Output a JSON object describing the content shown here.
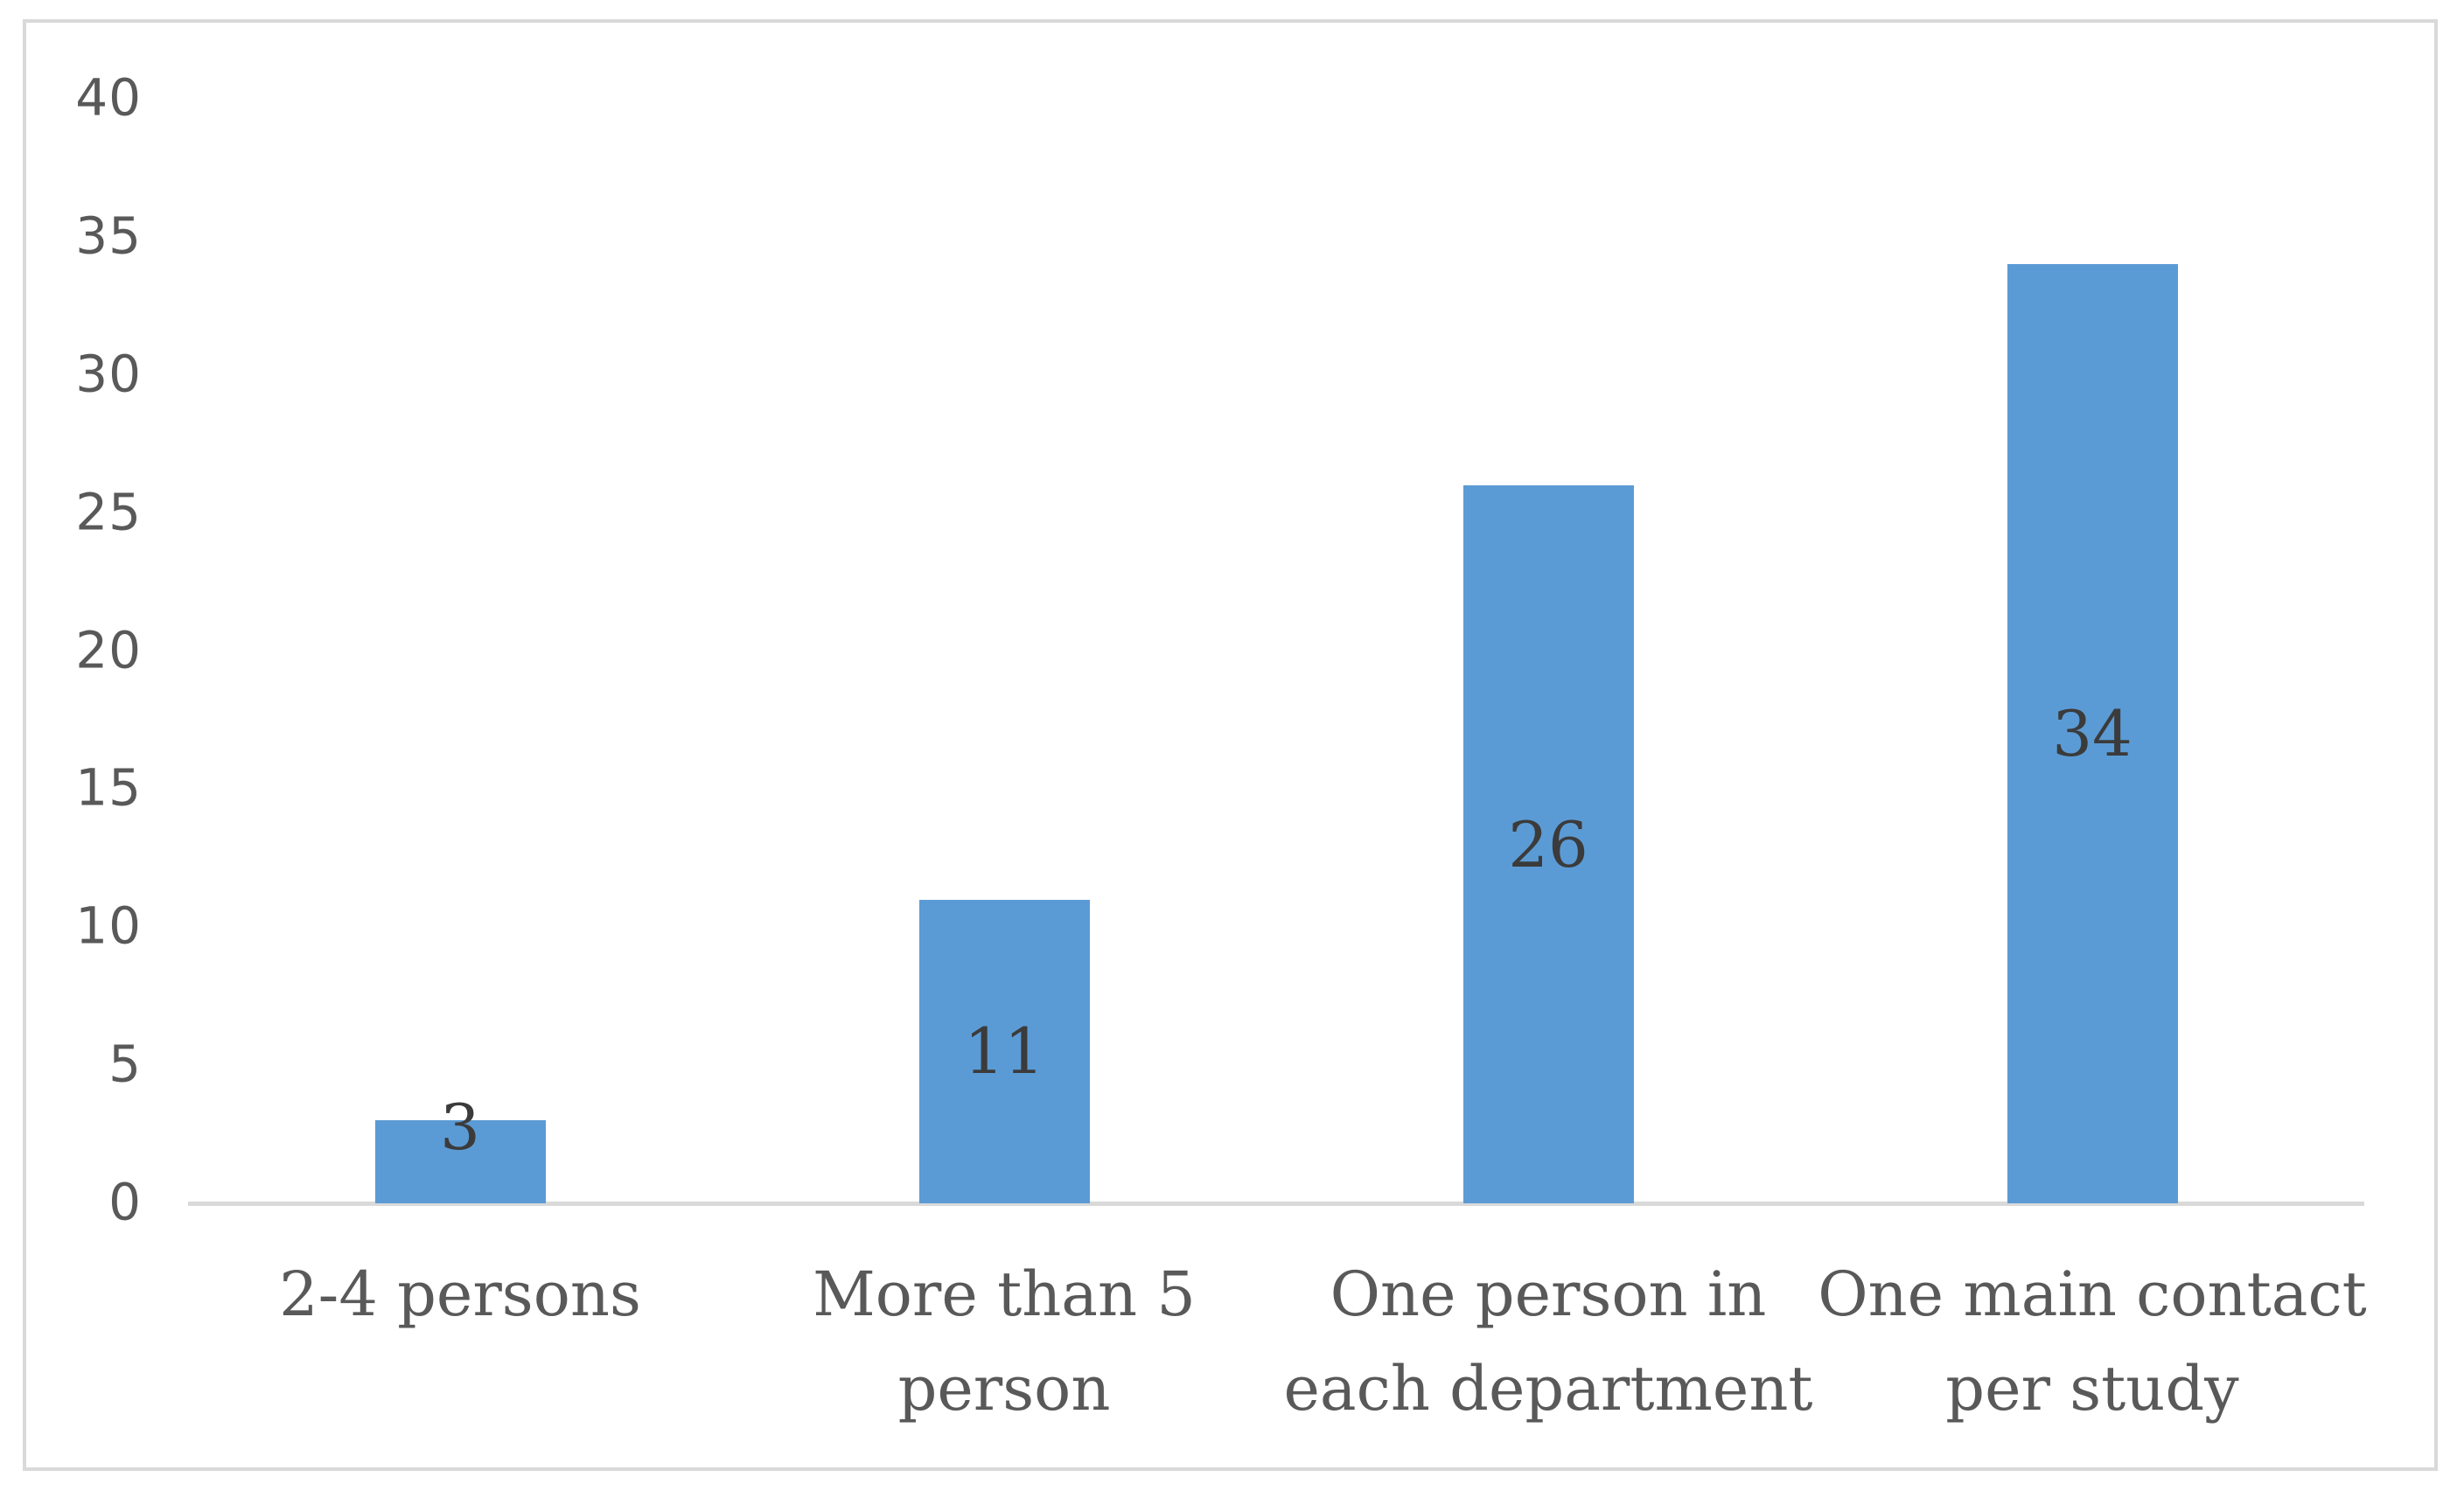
{
  "figure": {
    "background_color": "#ffffff",
    "frame_border_color": "#d9d9d9"
  },
  "chart_data": {
    "type": "bar",
    "title": "",
    "xlabel": "",
    "ylabel": "",
    "categories": [
      "2-4 persons",
      "More than 5 person",
      "One person in each department",
      "One main contact per study"
    ],
    "category_lines": [
      [
        "2-4 persons"
      ],
      [
        "More than 5",
        "person"
      ],
      [
        "One person in",
        "each department"
      ],
      [
        "One main contact",
        "per study"
      ]
    ],
    "values": [
      3,
      11,
      26,
      34
    ],
    "data_labels": [
      "3",
      "11",
      "26",
      "34"
    ],
    "y_ticks": [
      "0",
      "5",
      "10",
      "15",
      "20",
      "25",
      "30",
      "35",
      "40"
    ],
    "ylim": [
      0,
      40
    ],
    "grid": false,
    "legend": false,
    "bar_color": "#5b9bd5",
    "axis_line_color": "#d9d9d9",
    "tick_label_color": "#595959",
    "category_label_color": "#595959",
    "data_label_color": "#3b3b3b",
    "layout": {
      "data_label_positions": [
        "top-edge",
        "center",
        "center",
        "center"
      ]
    }
  }
}
